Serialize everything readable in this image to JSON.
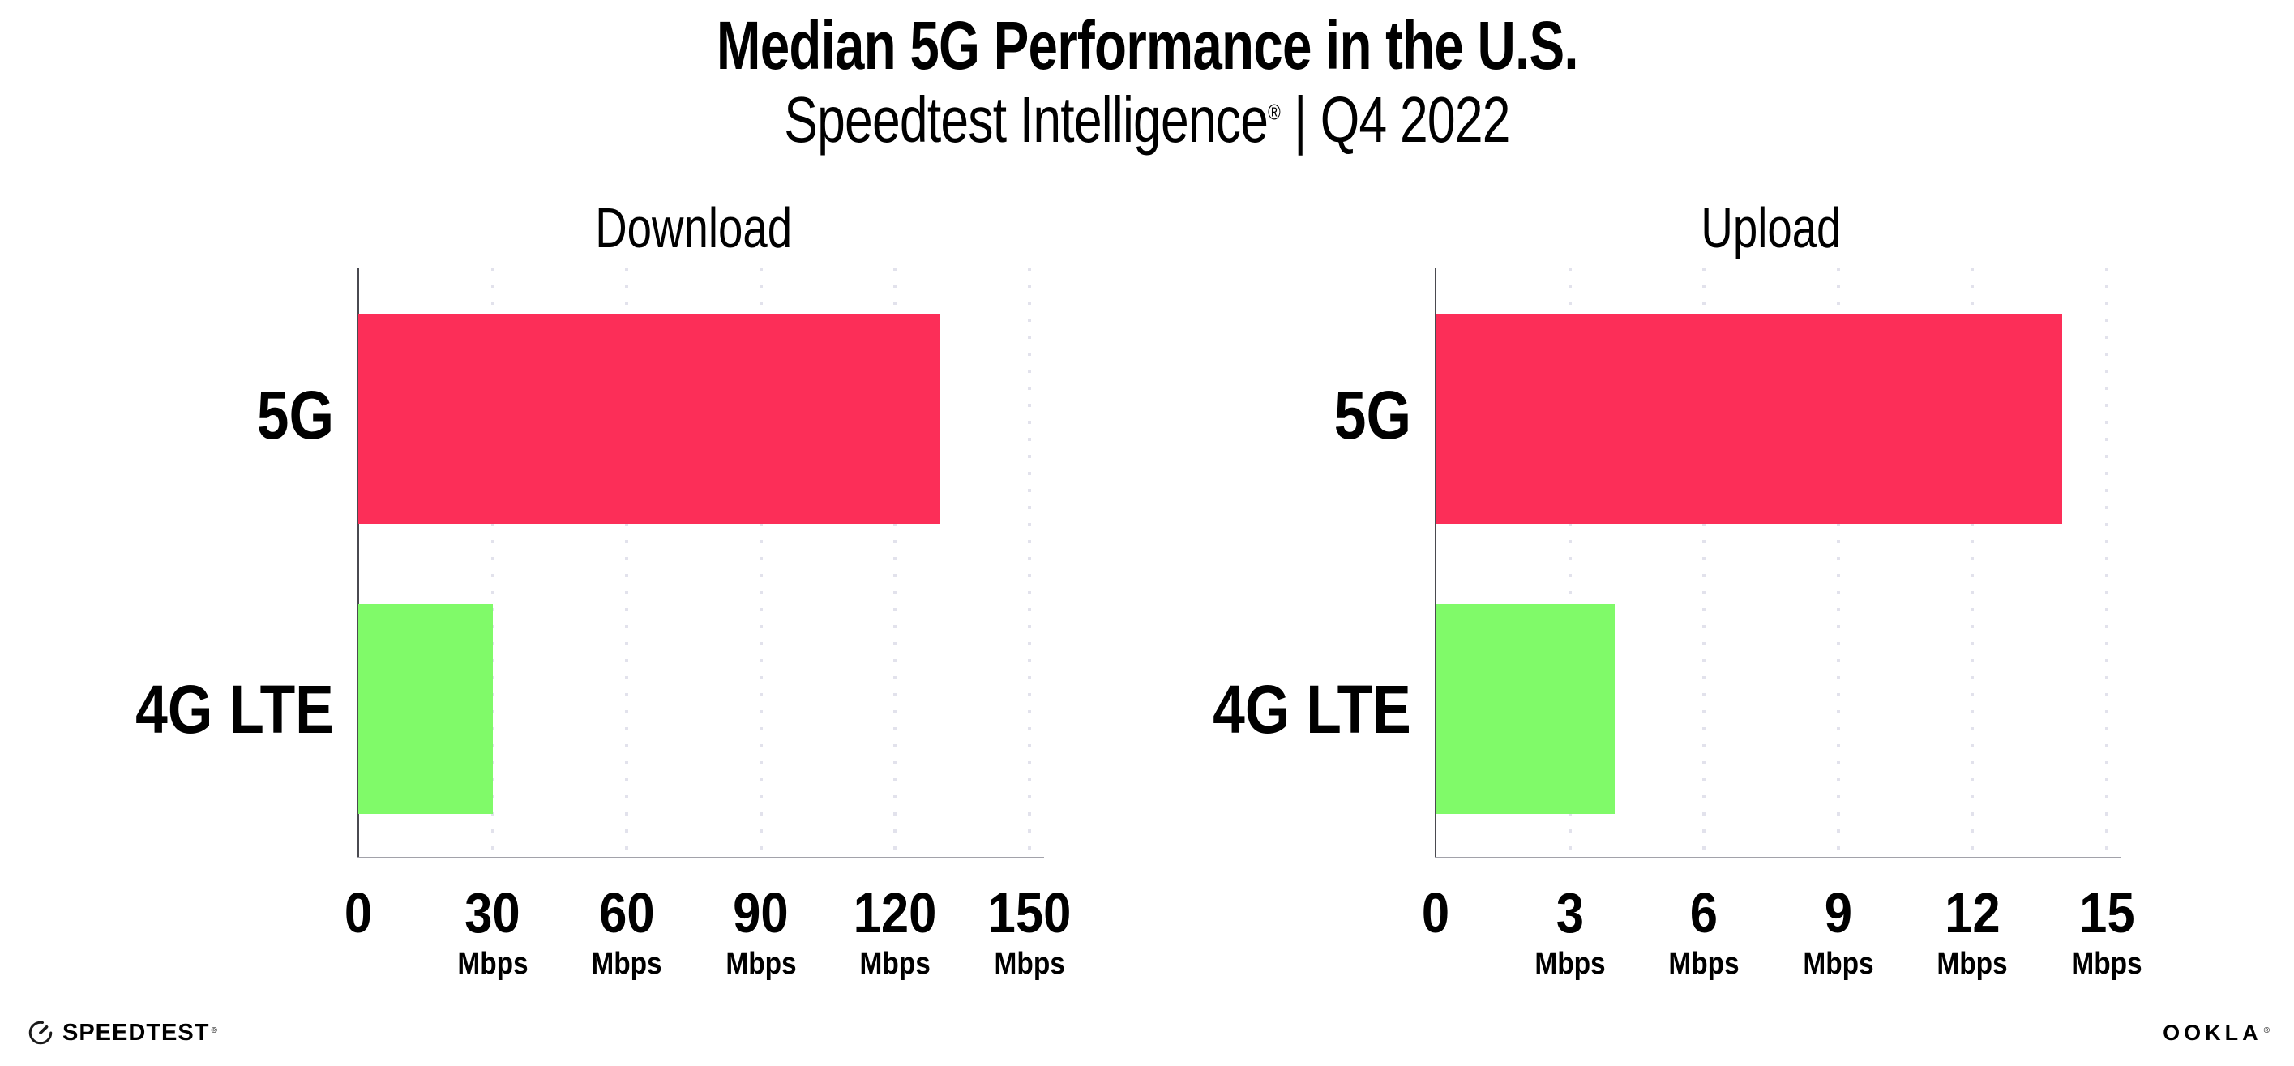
{
  "header": {
    "title": "Median 5G Performance in the U.S.",
    "subtitle_brand": "Speedtest Intelligence",
    "registered_mark": "®",
    "subtitle_separator": "|",
    "subtitle_period": "Q4 2022"
  },
  "chart_data": [
    {
      "type": "bar",
      "orientation": "horizontal",
      "title": "Download",
      "categories": [
        "5G",
        "4G LTE"
      ],
      "values": [
        130,
        30
      ],
      "unit": "Mbps",
      "xlim": [
        0,
        150
      ],
      "xticks": [
        0,
        30,
        60,
        90,
        120,
        150
      ],
      "bar_colors": [
        "#fc2e58",
        "#80fa69"
      ],
      "grid": "dotted vertical gridlines at each tick",
      "legend": "none"
    },
    {
      "type": "bar",
      "orientation": "horizontal",
      "title": "Upload",
      "categories": [
        "5G",
        "4G LTE"
      ],
      "values": [
        14,
        4
      ],
      "unit": "Mbps",
      "xlim": [
        0,
        15
      ],
      "xticks": [
        0,
        3,
        6,
        9,
        12,
        15
      ],
      "bar_colors": [
        "#fc2e58",
        "#80fa69"
      ],
      "grid": "dotted vertical gridlines at each tick",
      "legend": "none"
    }
  ],
  "colors": {
    "bar_5g": "#fc2e58",
    "bar_4g_lte": "#80fa69",
    "gridline": "#e2e2ec",
    "x_axis_line": "#a2a2aa",
    "y_axis_line": "#4a4a50",
    "text": "#000000"
  },
  "footer": {
    "speedtest_logo_text": "SPEEDTEST",
    "speedtest_registered_mark": "®",
    "speedtest_icon": "gauge-icon",
    "ookla_logo_text": "OOKLA",
    "ookla_registered_mark": "®"
  }
}
